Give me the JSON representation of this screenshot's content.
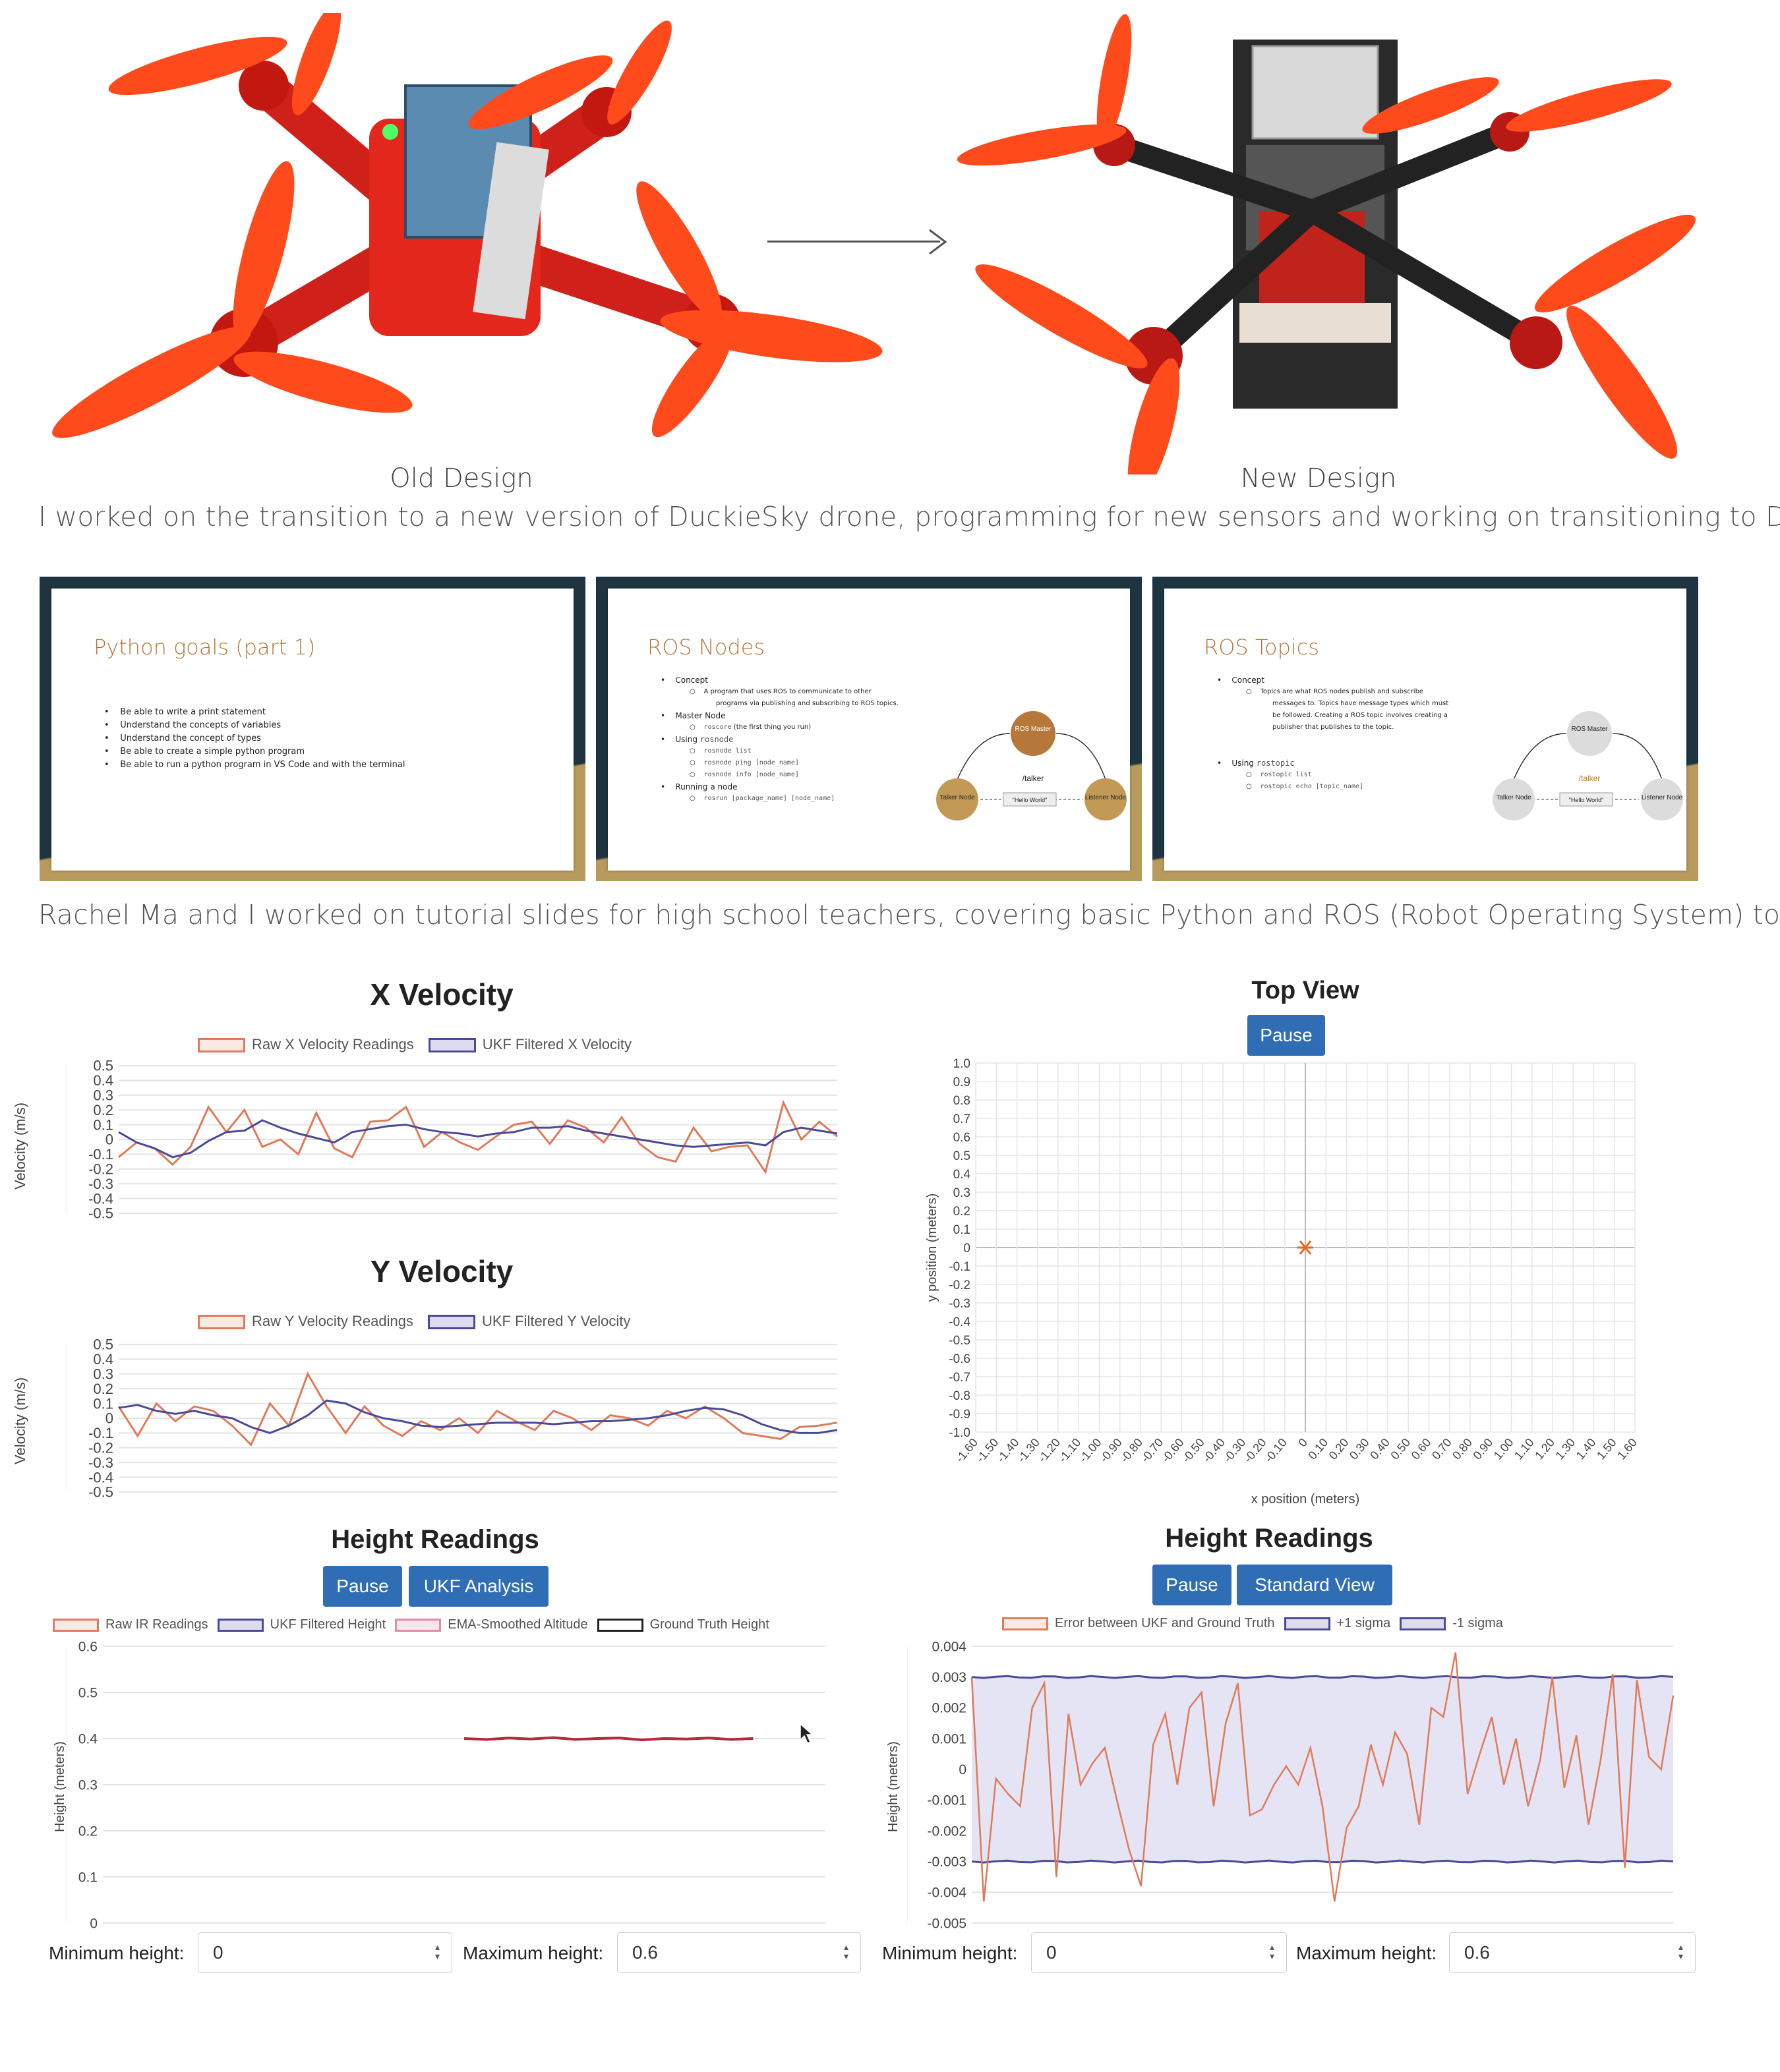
{
  "photos": {
    "old_caption": "Old Design",
    "new_caption": "New Design",
    "description": "I worked on the transition to a new version of DuckieSky drone, programming for new sensors and working on transitioning to Docker."
  },
  "slides": {
    "items": [
      {
        "title": "Python goals (part 1)",
        "bullets": [
          "Be able to write a print statement",
          "Understand the concepts of variables",
          "Understand the concept of types",
          "Be able to create a simple python program",
          "Be able to run a python program in VS Code and with the terminal"
        ]
      },
      {
        "title": "ROS Nodes",
        "lines": [
          "Concept",
          "A program that uses ROS to communicate to other",
          "programs via publishing and subscribing to ROS topics.",
          "Master Node",
          "roscore",
          "(the first thing you run)",
          "Using",
          "rosnode",
          "rosnode list",
          "rosnode ping [node_name]",
          "rosnode info [node_name]",
          "Running a node",
          "rosrun [package_name] [node_name]"
        ],
        "diagram": {
          "master": "ROS Master",
          "topic": "/talker",
          "talker": "Talker Node",
          "listener": "Listener Node",
          "message": "\"Hello World\""
        }
      },
      {
        "title": "ROS Topics",
        "lines": [
          "Concept",
          "Topics are what ROS nodes publish and subscribe",
          "messages to. Topics have message types which must",
          "be followed. Creating a ROS topic involves creating a",
          "publisher that publishes to the topic.",
          "Using",
          "rostopic",
          "rostopic list",
          "rostopic echo [topic_name]"
        ],
        "diagram": {
          "master": "ROS Master",
          "topic": "/talker",
          "talker": "Talker Node",
          "listener": "Listener Node",
          "message": "\"Hello World\""
        }
      }
    ],
    "description": "Rachel Ma and I worked on tutorial slides for high school teachers, covering basic Python and ROS (Robot Operating System) topics."
  },
  "colors": {
    "raw": "#e07a5a",
    "ukf": "#4a4a96",
    "ema": "#e58aa6",
    "truth": "#222222",
    "button": "#2f6db5",
    "marker": "#e8661c"
  },
  "x_velocity": {
    "title": "X Velocity",
    "legend": [
      "Raw X Velocity Readings",
      "UKF Filtered X Velocity"
    ],
    "ylabel": "Velocity (m/s)"
  },
  "y_velocity": {
    "title": "Y Velocity",
    "legend": [
      "Raw Y Velocity Readings",
      "UKF Filtered Y Velocity"
    ],
    "ylabel": "Velocity (m/s)"
  },
  "top_view": {
    "title": "Top View",
    "pause_label": "Pause",
    "xlabel": "x position (meters)",
    "ylabel": "y position (meters)"
  },
  "height_left": {
    "title": "Height Readings",
    "pause_label": "Pause",
    "mode_label": "UKF Analysis",
    "legend": [
      "Raw IR Readings",
      "UKF Filtered Height",
      "EMA-Smoothed Altitude",
      "Ground Truth Height"
    ],
    "ylabel": "Height (meters)",
    "min_label": "Minimum height:",
    "min_value": "0",
    "max_label": "Maximum height:",
    "max_value": "0.6"
  },
  "height_right": {
    "title": "Height Readings",
    "pause_label": "Pause",
    "mode_label": "Standard View",
    "legend": [
      "Error between UKF and Ground Truth",
      "+1 sigma",
      "-1 sigma"
    ],
    "ylabel": "Height (meters)",
    "min_label": "Minimum height:",
    "min_value": "0",
    "max_label": "Maximum height:",
    "max_value": "0.6"
  },
  "chart_data": [
    {
      "type": "line",
      "name": "x_velocity",
      "ylim": [
        -0.5,
        0.5
      ],
      "yticks": [
        "0.5",
        "0.4",
        "0.3",
        "0.2",
        "0.1",
        "0",
        "-0.1",
        "-0.2",
        "-0.3",
        "-0.4",
        "-0.5"
      ],
      "grid": true,
      "series": [
        {
          "values": [
            -0.12,
            -0.02,
            -0.06,
            -0.17,
            -0.05,
            0.22,
            0.05,
            0.2,
            -0.05,
            0.0,
            -0.1,
            0.18,
            -0.06,
            -0.12,
            0.12,
            0.13,
            0.22,
            -0.05,
            0.05,
            -0.02,
            -0.07,
            0.02,
            0.1,
            0.12,
            -0.03,
            0.13,
            0.08,
            -0.02,
            0.15,
            -0.03,
            -0.12,
            -0.15,
            0.08,
            -0.08,
            -0.05,
            -0.04,
            -0.22,
            0.25,
            0.0,
            0.12,
            0.02
          ]
        },
        {
          "values": [
            0.05,
            -0.02,
            -0.06,
            -0.12,
            -0.09,
            -0.01,
            0.05,
            0.06,
            0.13,
            0.08,
            0.04,
            0.01,
            -0.02,
            0.05,
            0.07,
            0.09,
            0.1,
            0.07,
            0.05,
            0.04,
            0.02,
            0.04,
            0.05,
            0.08,
            0.08,
            0.09,
            0.06,
            0.04,
            0.02,
            0.0,
            -0.02,
            -0.04,
            -0.05,
            -0.04,
            -0.03,
            -0.02,
            -0.04,
            0.05,
            0.08,
            0.06,
            0.04
          ]
        }
      ]
    },
    {
      "type": "line",
      "name": "y_velocity",
      "ylim": [
        -0.5,
        0.5
      ],
      "yticks": [
        "0.5",
        "0.4",
        "0.3",
        "0.2",
        "0.1",
        "0",
        "-0.1",
        "-0.2",
        "-0.3",
        "-0.4",
        "-0.5"
      ],
      "grid": true,
      "series": [
        {
          "values": [
            0.08,
            -0.12,
            0.1,
            -0.02,
            0.08,
            0.05,
            -0.05,
            -0.18,
            0.1,
            -0.05,
            0.3,
            0.08,
            -0.1,
            0.08,
            -0.05,
            -0.12,
            -0.02,
            -0.08,
            0.0,
            -0.1,
            0.05,
            -0.02,
            -0.08,
            0.05,
            0.0,
            -0.08,
            0.02,
            0.0,
            -0.05,
            0.05,
            0.0,
            0.08,
            0.0,
            -0.1,
            -0.12,
            -0.14,
            -0.06,
            -0.05,
            -0.03
          ]
        },
        {
          "values": [
            0.07,
            0.09,
            0.05,
            0.03,
            0.05,
            0.02,
            0.0,
            -0.06,
            -0.1,
            -0.05,
            0.02,
            0.12,
            0.1,
            0.04,
            0.0,
            -0.02,
            -0.05,
            -0.06,
            -0.05,
            -0.04,
            -0.03,
            -0.03,
            -0.03,
            -0.04,
            -0.03,
            -0.02,
            -0.02,
            -0.01,
            0.0,
            0.02,
            0.05,
            0.07,
            0.06,
            0.02,
            -0.04,
            -0.08,
            -0.1,
            -0.1,
            -0.08
          ]
        }
      ]
    },
    {
      "type": "scatter",
      "name": "top_view",
      "xlim": [
        -1.6,
        1.6
      ],
      "ylim": [
        -1.0,
        1.0
      ],
      "xticks": [
        "-1.60",
        "-1.50",
        "-1.40",
        "-1.30",
        "-1.20",
        "-1.10",
        "-1.00",
        "-0.90",
        "-0.80",
        "-0.70",
        "-0.60",
        "-0.50",
        "-0.40",
        "-0.30",
        "-0.20",
        "-0.10",
        "0",
        "0.10",
        "0.20",
        "0.30",
        "0.40",
        "0.50",
        "0.60",
        "0.70",
        "0.80",
        "0.90",
        "1.00",
        "1.10",
        "1.20",
        "1.30",
        "1.40",
        "1.50",
        "1.60"
      ],
      "yticks": [
        "1.0",
        "0.9",
        "0.8",
        "0.7",
        "0.6",
        "0.5",
        "0.4",
        "0.3",
        "0.2",
        "0.1",
        "0",
        "-0.1",
        "-0.2",
        "-0.3",
        "-0.4",
        "-0.5",
        "-0.6",
        "-0.7",
        "-0.8",
        "-0.9",
        "-1.0"
      ],
      "points": [
        {
          "x": 0.0,
          "y": 0.0
        }
      ]
    },
    {
      "type": "line",
      "name": "height_left",
      "ylim": [
        0,
        0.6
      ],
      "yticks": [
        "0.6",
        "0.5",
        "0.4",
        "0.3",
        "0.2",
        "0.1",
        "0"
      ],
      "grid": true,
      "series": [
        {
          "x_start": 0.5,
          "x_end": 0.9,
          "values": [
            0.4,
            0.398,
            0.401,
            0.399,
            0.402,
            0.398,
            0.4,
            0.401,
            0.397,
            0.4,
            0.399,
            0.401,
            0.398,
            0.4
          ]
        }
      ]
    },
    {
      "type": "line",
      "name": "height_right",
      "ylim": [
        -0.005,
        0.004
      ],
      "yticks": [
        "0.004",
        "0.003",
        "0.002",
        "0.001",
        "0",
        "-0.001",
        "-0.002",
        "-0.003",
        "-0.004",
        "-0.005"
      ],
      "grid": true,
      "sigma_plus": 0.003,
      "sigma_minus": -0.003,
      "series": [
        {
          "values": [
            0.003,
            -0.0043,
            -0.0003,
            -0.0008,
            -0.0012,
            0.002,
            0.0028,
            -0.0035,
            0.0018,
            -0.0005,
            0.0002,
            0.0007,
            -0.001,
            -0.0026,
            -0.0038,
            0.0008,
            0.0018,
            -0.0005,
            0.002,
            0.0025,
            -0.0012,
            0.0015,
            0.0028,
            -0.0015,
            -0.0013,
            -0.0005,
            0.0001,
            -0.0005,
            0.0007,
            -0.0012,
            -0.0043,
            -0.0019,
            -0.0012,
            0.0008,
            -0.0005,
            0.0012,
            0.0005,
            -0.0018,
            0.002,
            0.0017,
            0.0038,
            -0.0008,
            0.0005,
            0.0017,
            -0.0005,
            0.001,
            -0.0012,
            0.0003,
            0.003,
            -0.0006,
            0.0011,
            -0.0018,
            0.0003,
            0.0031,
            -0.0032,
            0.0029,
            0.0004,
            0.0,
            0.0024
          ]
        }
      ]
    }
  ]
}
